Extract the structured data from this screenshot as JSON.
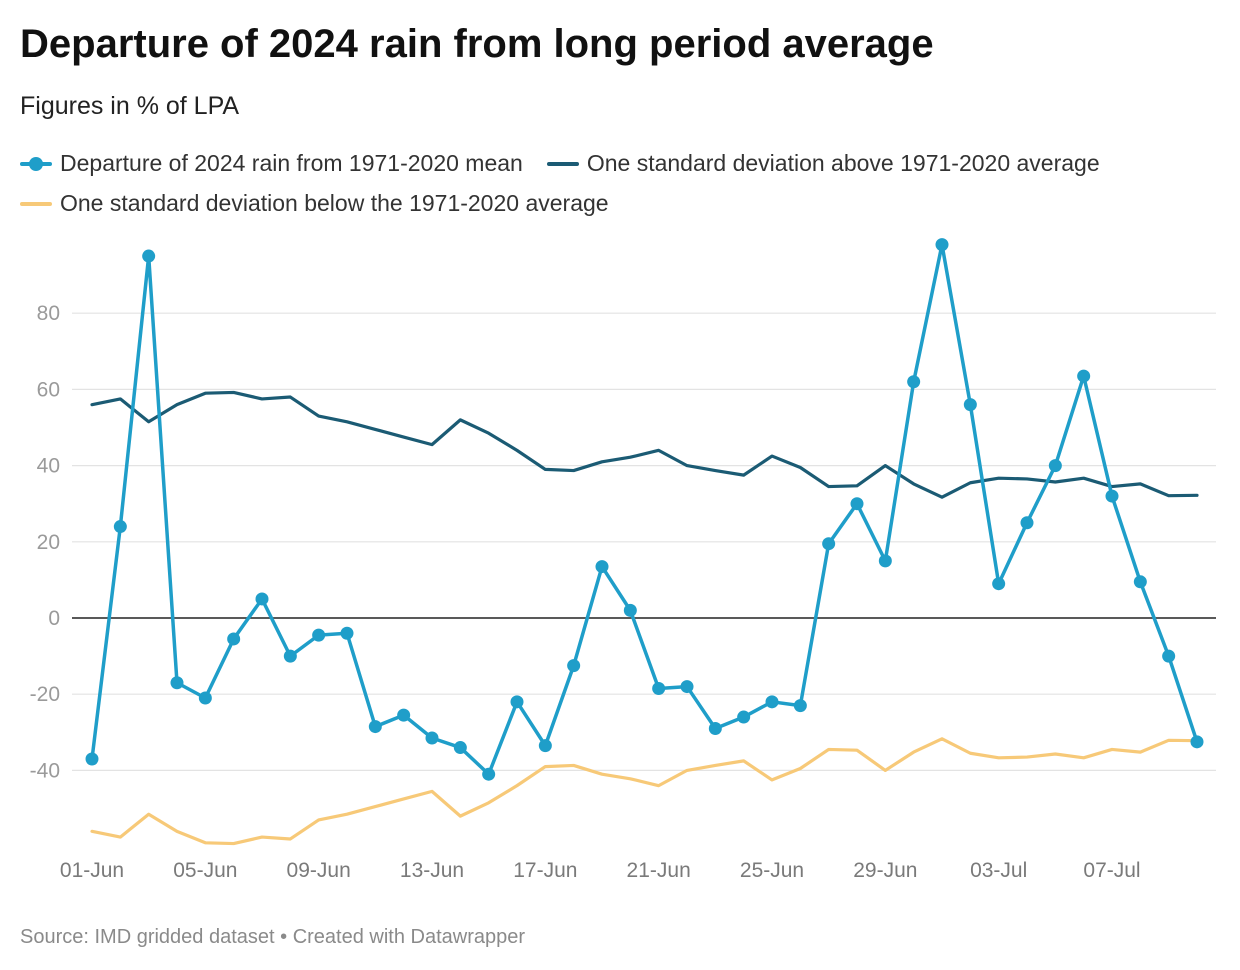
{
  "chart_data": {
    "type": "line",
    "title": "Departure of 2024 rain from long period average",
    "subtitle": "Figures in % of LPA",
    "source": "Source: IMD gridded dataset • Created with Datawrapper",
    "xlabel": "",
    "ylabel": "",
    "ylim": [
      -60,
      100
    ],
    "yticks": [
      -40,
      -20,
      0,
      20,
      40,
      60,
      80
    ],
    "xticks": [
      {
        "index": 0,
        "label": "01-Jun"
      },
      {
        "index": 4,
        "label": "05-Jun"
      },
      {
        "index": 8,
        "label": "09-Jun"
      },
      {
        "index": 12,
        "label": "13-Jun"
      },
      {
        "index": 16,
        "label": "17-Jun"
      },
      {
        "index": 20,
        "label": "21-Jun"
      },
      {
        "index": 24,
        "label": "25-Jun"
      },
      {
        "index": 28,
        "label": "29-Jun"
      },
      {
        "index": 32,
        "label": "03-Jul"
      },
      {
        "index": 36,
        "label": "07-Jul"
      }
    ],
    "x_count": 40,
    "series": [
      {
        "name": "Departure of 2024 rain from 1971-2020 mean",
        "color": "#1f9ec9",
        "markers": true,
        "values": [
          -37,
          24,
          95,
          -17,
          -21,
          -5.5,
          5,
          -10,
          -4.5,
          -4,
          -28.5,
          -25.5,
          -31.5,
          -34,
          -41,
          -22,
          -33.5,
          -12.5,
          13.5,
          2,
          -18.5,
          -18,
          -29,
          -26,
          -22,
          -23,
          19.5,
          30,
          15,
          62,
          98,
          56,
          9,
          25,
          40,
          63.5,
          32,
          9.5,
          -10,
          -32.5
        ]
      },
      {
        "name": "One standard deviation above 1971-2020 average",
        "color": "#1b5b74",
        "markers": false,
        "values": [
          56,
          57.5,
          51.5,
          56,
          59,
          59.2,
          57.5,
          58,
          53,
          51.5,
          49.5,
          47.5,
          45.5,
          52,
          48.5,
          44,
          39,
          38.7,
          41,
          42.2,
          44,
          40,
          38.7,
          37.5,
          42.5,
          39.5,
          34.5,
          34.7,
          40,
          35.2,
          31.7,
          35.5,
          36.7,
          36.5,
          35.7,
          36.7,
          34.5,
          35.2,
          32.1,
          32.2
        ]
      },
      {
        "name": "One standard deviation below the 1971-2020 average",
        "color": "#f7c978",
        "markers": false,
        "values": [
          -56,
          -57.5,
          -51.5,
          -56,
          -59,
          -59.2,
          -57.5,
          -58,
          -53,
          -51.5,
          -49.5,
          -47.5,
          -45.5,
          -52,
          -48.5,
          -44,
          -39,
          -38.7,
          -41,
          -42.2,
          -44,
          -40,
          -38.7,
          -37.5,
          -42.5,
          -39.5,
          -34.5,
          -34.7,
          -40,
          -35.2,
          -31.7,
          -35.5,
          -36.7,
          -36.5,
          -35.7,
          -36.7,
          -34.5,
          -35.2,
          -32.1,
          -32.2
        ]
      }
    ]
  }
}
